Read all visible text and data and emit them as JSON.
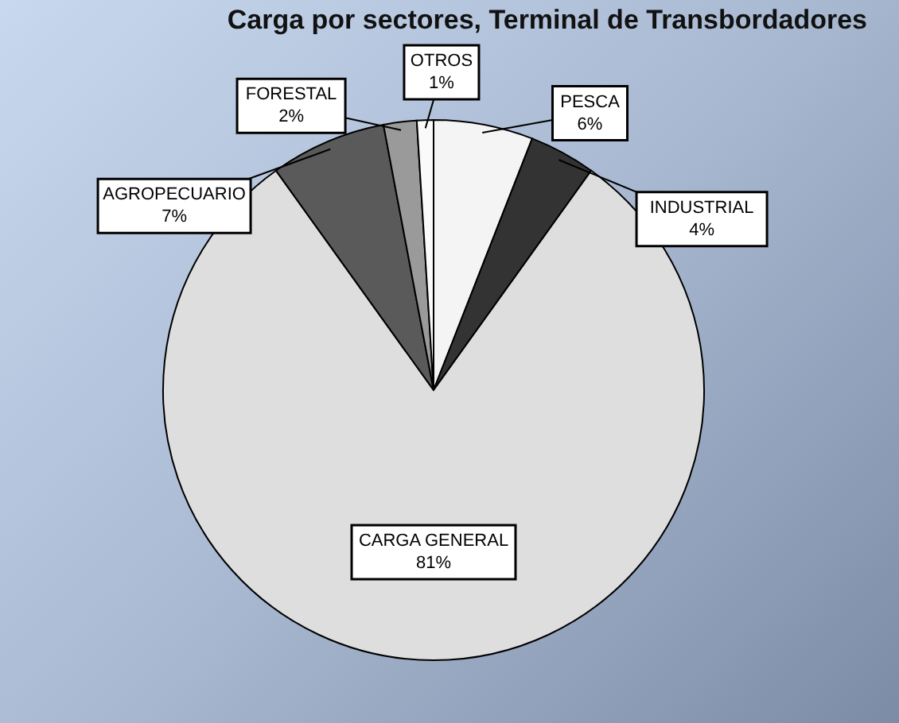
{
  "chart_data": {
    "type": "pie",
    "title": "Carga por sectores, Terminal de Transbordadores",
    "categories": [
      "PESCA",
      "INDUSTRIAL",
      "CARGA GENERAL",
      "AGROPECUARIO",
      "FORESTAL",
      "OTROS"
    ],
    "values": [
      6,
      4,
      81,
      7,
      2,
      1
    ],
    "value_labels": [
      "6%",
      "4%",
      "81%",
      "7%",
      "2%",
      "1%"
    ],
    "colors": [
      "#f4f4f4",
      "#333333",
      "#dedede",
      "#5a5a5a",
      "#9a9a9a",
      "#fafafa"
    ],
    "legend": false
  }
}
